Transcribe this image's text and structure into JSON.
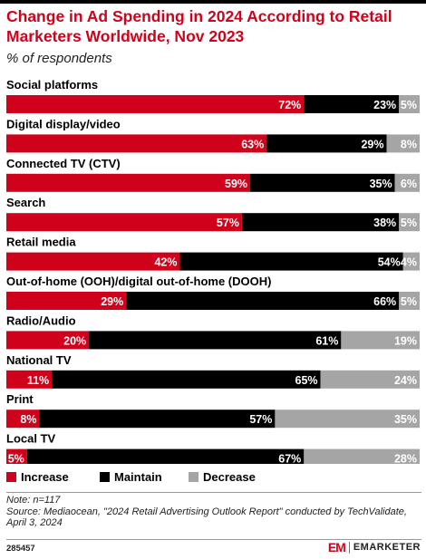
{
  "title": "Change in Ad Spending in 2024 According to Retail Marketers Worldwide, Nov 2023",
  "subtitle": "% of respondents",
  "colors": {
    "increase": "#d0021b",
    "maintain": "#000000",
    "decrease": "#a5a5a5",
    "title": "#d0021b"
  },
  "chart_data": {
    "type": "bar",
    "orientation": "horizontal",
    "stacked": true,
    "title": "Change in Ad Spending in 2024 According to Retail Marketers Worldwide, Nov 2023",
    "subtitle": "% of respondents",
    "categories": [
      "Social platforms",
      "Digital display/video",
      "Connected TV (CTV)",
      "Search",
      "Retail media",
      "Out-of-home (OOH)/digital out-of-home (DOOH)",
      "Radio/Audio",
      "National TV",
      "Print",
      "Local TV"
    ],
    "series": [
      {
        "name": "Increase",
        "values": [
          72,
          63,
          59,
          57,
          42,
          29,
          20,
          11,
          8,
          5
        ]
      },
      {
        "name": "Maintain",
        "values": [
          23,
          29,
          35,
          38,
          54,
          66,
          61,
          65,
          57,
          67
        ]
      },
      {
        "name": "Decrease",
        "values": [
          5,
          8,
          6,
          5,
          4,
          5,
          19,
          24,
          35,
          28
        ]
      }
    ],
    "value_suffix": "%",
    "xlim": [
      0,
      100
    ],
    "legend_position": "bottom-left",
    "grid": false
  },
  "notes": {
    "note": "Note: n=117",
    "source": "Source: Mediaocean, \"2024 Retail Advertising Outlook Report\" conducted by TechValidate, April 3, 2024"
  },
  "footer": {
    "id": "285457",
    "brand": "EMARKETER",
    "logo": "EM"
  }
}
